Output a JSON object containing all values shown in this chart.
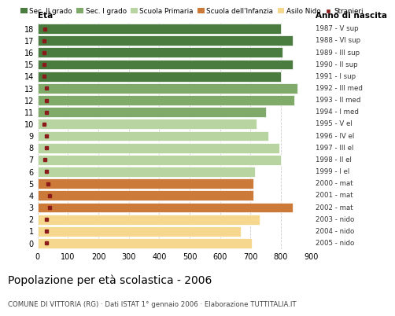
{
  "ages": [
    18,
    17,
    16,
    15,
    14,
    13,
    12,
    11,
    10,
    9,
    8,
    7,
    6,
    5,
    4,
    3,
    2,
    1,
    0
  ],
  "years": [
    "1987 - V sup",
    "1988 - VI sup",
    "1989 - III sup",
    "1990 - II sup",
    "1991 - I sup",
    "1992 - III med",
    "1993 - II med",
    "1994 - I med",
    "1995 - V el",
    "1996 - IV el",
    "1997 - III el",
    "1998 - II el",
    "1999 - I el",
    "2000 - mat",
    "2001 - mat",
    "2002 - mat",
    "2003 - nido",
    "2004 - nido",
    "2005 - nido"
  ],
  "bar_values": [
    800,
    840,
    805,
    840,
    800,
    855,
    845,
    750,
    720,
    758,
    795,
    800,
    715,
    710,
    710,
    840,
    730,
    668,
    703
  ],
  "stranieri_values": [
    25,
    22,
    22,
    22,
    22,
    30,
    28,
    28,
    22,
    30,
    30,
    25,
    28,
    35,
    40,
    40,
    28,
    30,
    28
  ],
  "categories": {
    "sec2": [
      14,
      15,
      16,
      17,
      18
    ],
    "sec1": [
      11,
      12,
      13
    ],
    "primaria": [
      6,
      7,
      8,
      9,
      10
    ],
    "infanzia": [
      3,
      4,
      5
    ],
    "nido": [
      0,
      1,
      2
    ]
  },
  "colors": {
    "sec2": "#4a7c3f",
    "sec1": "#7faa6a",
    "primaria": "#b8d4a0",
    "infanzia": "#cc7a3a",
    "nido": "#f5d78e",
    "stranieri": "#8b1a1a"
  },
  "legend_labels": [
    "Sec. II grado",
    "Sec. I grado",
    "Scuola Primaria",
    "Scuola dell'Infanzia",
    "Asilo Nido",
    "Stranieri"
  ],
  "xlabel_left": "Età",
  "xlabel_right": "Anno di nascita",
  "xlim": [
    0,
    900
  ],
  "xticks": [
    0,
    100,
    200,
    300,
    400,
    500,
    600,
    700,
    800,
    900
  ],
  "title": "Popolazione per età scolastica - 2006",
  "subtitle": "COMUNE DI VITTORIA (RG) · Dati ISTAT 1° gennaio 2006 · Elaborazione TUTTITALIA.IT",
  "bg_color": "#ffffff",
  "grid_color": "#cccccc"
}
